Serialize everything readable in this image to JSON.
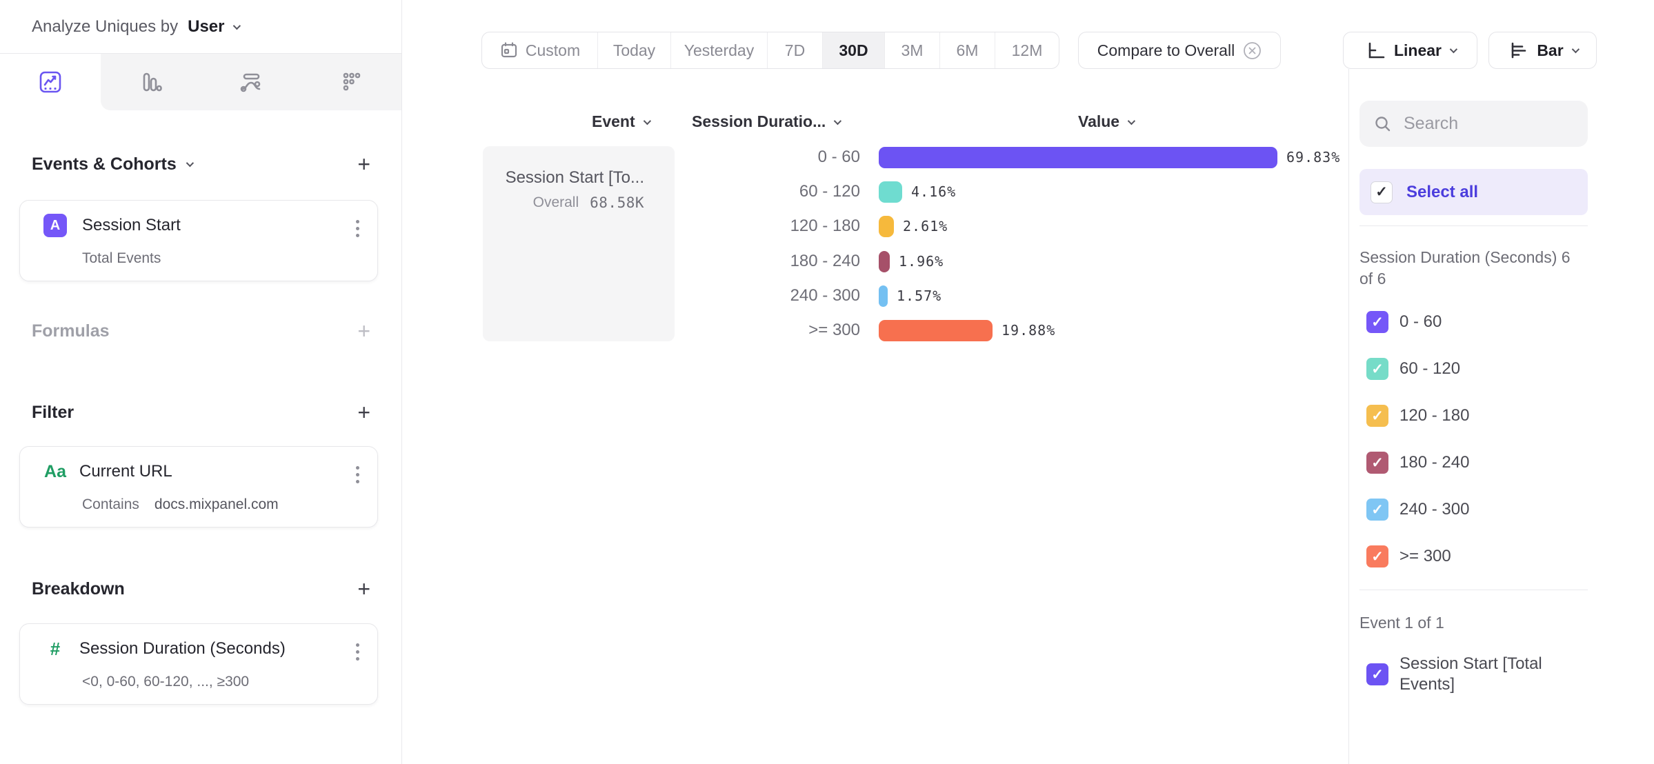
{
  "header": {
    "analyze_label": "Analyze Uniques by",
    "analyze_value": "User"
  },
  "tabs": [
    {
      "name": "insights",
      "selected": true
    },
    {
      "name": "funnels",
      "selected": false
    },
    {
      "name": "flows",
      "selected": false
    },
    {
      "name": "retention",
      "selected": false
    }
  ],
  "builder": {
    "events_section_title": "Events & Cohorts",
    "event_card": {
      "badge": "A",
      "title": "Session Start",
      "subtitle": "Total Events"
    },
    "formulas_title": "Formulas",
    "filter_title": "Filter",
    "filter_card": {
      "icon": "Aa",
      "title": "Current URL",
      "operator": "Contains",
      "value": "docs.mixpanel.com"
    },
    "breakdown_title": "Breakdown",
    "breakdown_card": {
      "icon": "#",
      "title": "Session Duration (Seconds)",
      "subtitle": "<0, 0-60, 60-120, ..., ≥300"
    }
  },
  "toolbar": {
    "date_ranges": [
      "Custom",
      "Today",
      "Yesterday",
      "7D",
      "30D",
      "3M",
      "6M",
      "12M"
    ],
    "selected_range": "30D",
    "compare_chip": "Compare to Overall",
    "scale_dropdown": "Linear",
    "chart_type_dropdown": "Bar"
  },
  "table": {
    "columns": [
      "Event",
      "Session Duratio...",
      "Value"
    ],
    "row": {
      "event": "Session Start [To...",
      "overall_label": "Overall",
      "overall_value": "68.58K"
    }
  },
  "chart_data": {
    "type": "bar",
    "orientation": "horizontal",
    "title": "",
    "xlabel": "Value",
    "ylabel": "Session Duration (Seconds)",
    "categories": [
      "0 - 60",
      "60 - 120",
      "120 - 180",
      "180 - 240",
      "240 - 300",
      ">= 300"
    ],
    "values": [
      69.83,
      4.16,
      2.61,
      1.96,
      1.57,
      19.88
    ],
    "labels": [
      "69.83%",
      "4.16%",
      "2.61%",
      "1.96%",
      "1.57%",
      "19.88%"
    ],
    "colors": [
      "#6c53f3",
      "#6fdcd0",
      "#f6b93c",
      "#a65069",
      "#74c0f2",
      "#f7704f"
    ],
    "series_name": "Session Start [Total Events]",
    "overall_value": "68.58K",
    "xlim": [
      0,
      75
    ],
    "grid": false,
    "legend_position": "right"
  },
  "sidebar_right": {
    "search_placeholder": "Search",
    "select_all": "Select all",
    "group1_title": "Session Duration (Seconds) 6 of 6",
    "items": [
      {
        "label": "0 - 60",
        "color": "#7557f8",
        "checked": true
      },
      {
        "label": "60 - 120",
        "color": "#76dcc8",
        "checked": true
      },
      {
        "label": "120 - 180",
        "color": "#f5be4f",
        "checked": true
      },
      {
        "label": "180 - 240",
        "color": "#b05a72",
        "checked": true
      },
      {
        "label": "240 - 300",
        "color": "#7fc6f4",
        "checked": true
      },
      {
        "label": ">= 300",
        "color": "#f97b5e",
        "checked": true
      }
    ],
    "group2_title": "Event 1 of 1",
    "event_item": {
      "label": "Session Start [Total Events]",
      "color": "#6c53f3",
      "checked": true
    }
  },
  "icons": {
    "check": "✓",
    "plus": "+"
  }
}
